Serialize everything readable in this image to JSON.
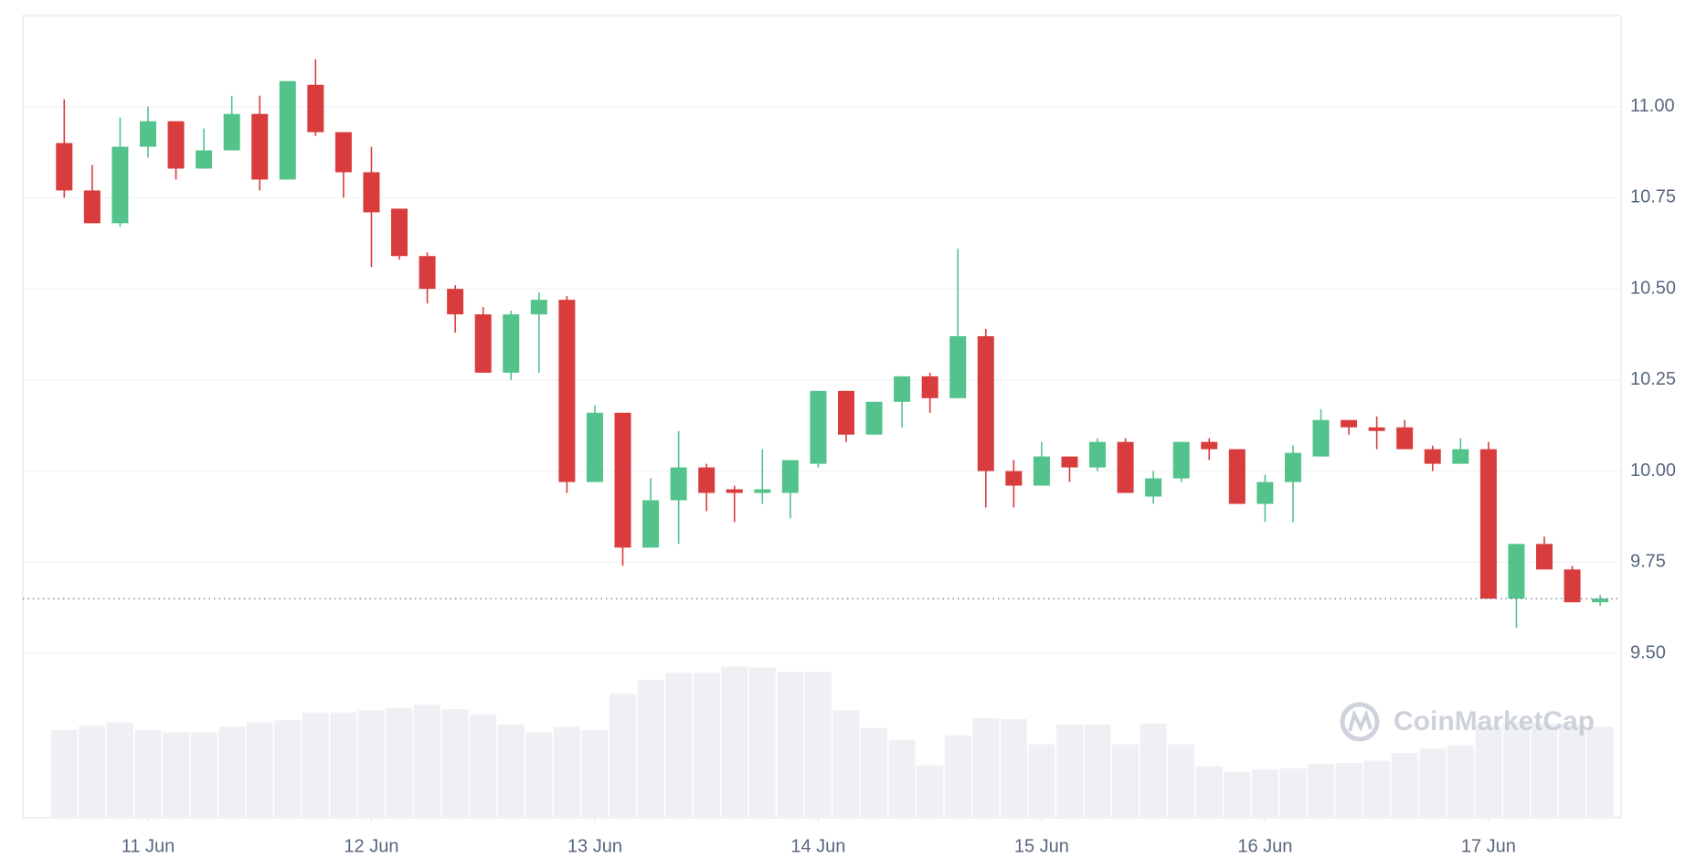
{
  "chart_data": {
    "type": "candlestick",
    "xticks": [
      {
        "value": 3,
        "label": "11 Jun"
      },
      {
        "value": 11,
        "label": "12 Jun"
      },
      {
        "value": 19,
        "label": "13 Jun"
      },
      {
        "value": 27,
        "label": "14 Jun"
      },
      {
        "value": 35,
        "label": "15 Jun"
      },
      {
        "value": 43,
        "label": "16 Jun"
      },
      {
        "value": 51,
        "label": "17 Jun"
      }
    ],
    "ylim": [
      9.5,
      11.25
    ],
    "yticks": [
      {
        "value": 9.5,
        "label": "9.50"
      },
      9.75,
      {
        "value": 10,
        "label": "10.00"
      },
      10.25,
      {
        "value": 10.5,
        "label": "10.50"
      },
      10.75,
      {
        "value": 11,
        "label": "11.00"
      }
    ],
    "grid": true,
    "up_color": "#53c28b",
    "down_color": "#d93c3c",
    "volume_color": "#eef0f3",
    "volume_lim": [
      0,
      150
    ],
    "last_price": 9.65,
    "watermark": "CoinMarketCap",
    "open": [
      10.9,
      10.77,
      10.68,
      10.89,
      10.96,
      10.83,
      10.88,
      10.98,
      10.8,
      11.06,
      10.93,
      10.82,
      10.72,
      10.59,
      10.5,
      10.43,
      10.27,
      10.43,
      10.47,
      9.97,
      10.16,
      9.79,
      9.92,
      10.01,
      9.95,
      9.94,
      9.94,
      10.02,
      10.22,
      10.1,
      10.19,
      10.26,
      10.2,
      10.37,
      10.0,
      9.96,
      10.04,
      10.01,
      10.08,
      9.93,
      9.98,
      10.08,
      10.06,
      9.91,
      9.97,
      10.04,
      10.14,
      10.12,
      10.12,
      10.06,
      10.02,
      10.06,
      9.65,
      9.8,
      9.73,
      9.64
    ],
    "high": [
      11.02,
      10.84,
      10.97,
      11.0,
      10.96,
      10.94,
      11.03,
      11.03,
      11.07,
      11.13,
      10.93,
      10.89,
      10.72,
      10.6,
      10.51,
      10.45,
      10.44,
      10.49,
      10.48,
      10.18,
      10.16,
      9.98,
      10.11,
      10.02,
      9.96,
      10.06,
      10.03,
      10.22,
      10.22,
      10.19,
      10.26,
      10.27,
      10.61,
      10.39,
      10.03,
      10.08,
      10.04,
      10.09,
      10.09,
      10.0,
      10.08,
      10.09,
      10.06,
      9.99,
      10.07,
      10.17,
      10.14,
      10.15,
      10.14,
      10.07,
      10.09,
      10.08,
      9.8,
      9.82,
      9.74,
      9.66
    ],
    "low": [
      10.75,
      10.68,
      10.67,
      10.86,
      10.8,
      10.83,
      10.88,
      10.77,
      10.8,
      10.92,
      10.75,
      10.56,
      10.58,
      10.46,
      10.38,
      10.27,
      10.25,
      10.27,
      9.94,
      9.97,
      9.74,
      9.79,
      9.8,
      9.89,
      9.86,
      9.91,
      9.87,
      10.01,
      10.08,
      10.1,
      10.12,
      10.16,
      10.2,
      9.9,
      9.9,
      9.96,
      9.97,
      10.0,
      9.94,
      9.91,
      9.97,
      10.03,
      9.91,
      9.86,
      9.86,
      10.04,
      10.1,
      10.06,
      10.06,
      10.0,
      10.02,
      9.65,
      9.57,
      9.73,
      9.64,
      9.63
    ],
    "close": [
      10.77,
      10.68,
      10.89,
      10.96,
      10.83,
      10.88,
      10.98,
      10.8,
      11.07,
      10.93,
      10.82,
      10.71,
      10.59,
      10.5,
      10.43,
      10.27,
      10.43,
      10.47,
      9.97,
      10.16,
      9.79,
      9.92,
      10.01,
      9.94,
      9.94,
      9.95,
      10.03,
      10.22,
      10.1,
      10.19,
      10.26,
      10.2,
      10.37,
      10.0,
      9.96,
      10.04,
      10.01,
      10.08,
      9.94,
      9.98,
      10.08,
      10.06,
      9.91,
      9.97,
      10.05,
      10.14,
      10.12,
      10.11,
      10.06,
      10.02,
      10.06,
      9.65,
      9.8,
      9.73,
      9.64,
      9.65
    ],
    "volume": [
      80,
      84,
      87,
      80,
      78,
      78,
      83,
      87,
      89,
      96,
      96,
      98,
      100,
      103,
      99,
      94,
      85,
      78,
      83,
      80,
      113,
      126,
      132,
      132,
      138,
      137,
      133,
      133,
      98,
      82,
      71,
      48,
      75,
      91,
      90,
      67,
      85,
      85,
      67,
      86,
      67,
      47,
      42,
      44,
      45,
      49,
      50,
      52,
      59,
      63,
      66,
      84,
      87,
      86,
      85,
      83
    ]
  }
}
